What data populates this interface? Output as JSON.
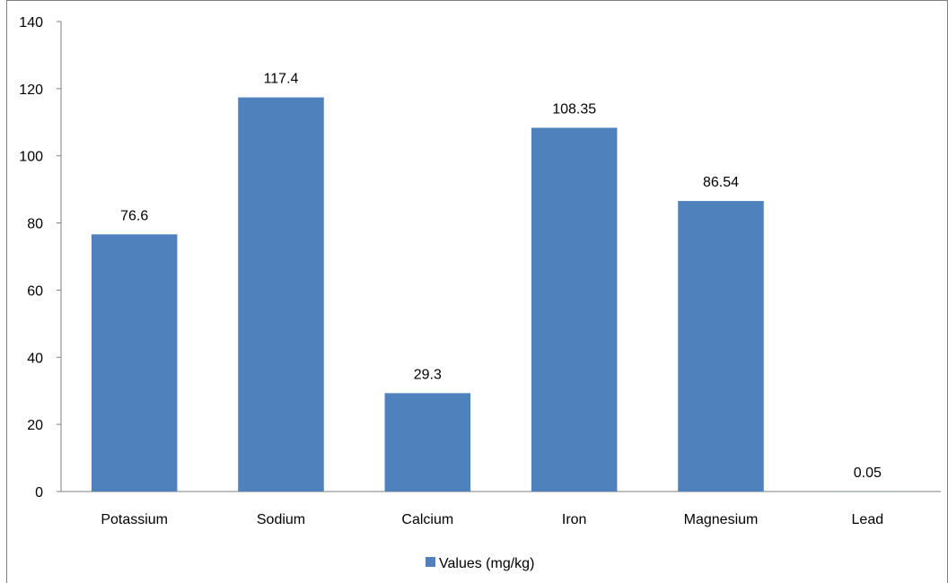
{
  "chart_data": {
    "type": "bar",
    "categories": [
      "Potassium",
      "Sodium",
      "Calcium",
      "Iron",
      "Magnesium",
      "Lead"
    ],
    "series": [
      {
        "name": "Values (mg/kg)",
        "values": [
          76.6,
          117.4,
          29.3,
          108.35,
          86.54,
          0.05
        ],
        "color": "#4F81BD"
      }
    ],
    "data_labels": [
      "76.6",
      "117.4",
      "29.3",
      "108.35",
      "86.54",
      "0.05"
    ],
    "yticks": [
      "0",
      "20",
      "40",
      "60",
      "80",
      "100",
      "120",
      "140"
    ],
    "ylim": [
      0,
      140
    ],
    "grid": false,
    "legend_position": "bottom",
    "title": "",
    "xlabel": "",
    "ylabel": ""
  }
}
